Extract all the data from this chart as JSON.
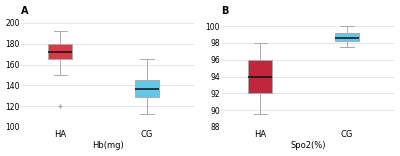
{
  "panel_A": {
    "title": "A",
    "xlabel": "Hb(mg)",
    "ylim": [
      100,
      205
    ],
    "yticks": [
      100,
      120,
      140,
      160,
      180,
      200
    ],
    "boxes": [
      {
        "label": "HA",
        "color": "#d93a4a",
        "q1": 165,
        "median": 172,
        "q3": 180,
        "whisker_low": 150,
        "whisker_high": 192,
        "fliers": [
          120
        ]
      },
      {
        "label": "CG",
        "color": "#63c7e8",
        "q1": 129,
        "median": 136,
        "q3": 145,
        "whisker_low": 112,
        "whisker_high": 165
      }
    ]
  },
  "panel_B": {
    "title": "B",
    "xlabel": "Spo2(%)",
    "ylim": [
      88,
      101
    ],
    "yticks": [
      88,
      90,
      92,
      94,
      96,
      98,
      100
    ],
    "boxes": [
      {
        "label": "HA",
        "color": "#c0273a",
        "q1": 92,
        "median": 94,
        "q3": 96,
        "whisker_low": 89.5,
        "whisker_high": 98
      },
      {
        "label": "CG",
        "color": "#63c7e8",
        "q1": 98.2,
        "median": 98.6,
        "q3": 99.2,
        "whisker_low": 97.5,
        "whisker_high": 100
      }
    ]
  },
  "bg_color": "#ffffff",
  "plot_bg_color": "#ffffff",
  "box_width": 0.28,
  "linewidth": 0.7,
  "whisker_color": "#aaaaaa",
  "median_color": "#111111",
  "grid_color": "#e0e0e0",
  "label_fontsize": 6,
  "tick_fontsize": 5.5,
  "title_fontsize": 7
}
